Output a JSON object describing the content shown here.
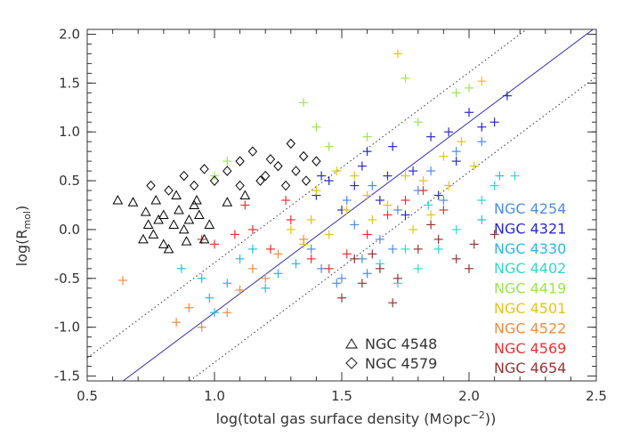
{
  "chart_data": {
    "type": "scatter",
    "xlabel_main": "log(total gas surface density (M",
    "xlabel_sym": "⊙",
    "xlabel_units": "pc",
    "xlabel_exp": "−2",
    "xlabel_close": "))",
    "ylabel_main": "log(R",
    "ylabel_sub": "mol",
    "ylabel_close": ")",
    "xlim": [
      0.5,
      2.5
    ],
    "ylim": [
      -1.55,
      2.05
    ],
    "xticks": [
      "0.5",
      "1.0",
      "1.5",
      "2.0",
      "2.5"
    ],
    "yticks": [
      "-1.5",
      "-1.0",
      "-0.5",
      "0.0",
      "0.5",
      "1.0",
      "1.5",
      "2.0"
    ],
    "fit_line": {
      "slope": 1.95,
      "intercept": -2.8,
      "color": "#3333aa"
    },
    "bounds": [
      {
        "slope": 1.95,
        "intercept": -2.29
      },
      {
        "slope": 1.95,
        "intercept": -3.31
      }
    ],
    "series": [
      {
        "name": "NGC 4254",
        "color": "#4d8ce6",
        "marker": "plus",
        "points": [
          [
            1.42,
            -0.4
          ],
          [
            1.5,
            -0.5
          ],
          [
            1.58,
            -0.3
          ],
          [
            1.65,
            -0.1
          ],
          [
            1.72,
            0.2
          ],
          [
            1.8,
            0.4
          ],
          [
            1.55,
            0.05
          ],
          [
            1.48,
            -0.55
          ],
          [
            1.62,
            0.45
          ],
          [
            1.7,
            -0.2
          ],
          [
            1.85,
            0.6
          ],
          [
            1.9,
            0.3
          ],
          [
            1.95,
            0.8
          ],
          [
            1.52,
            0.3
          ],
          [
            1.38,
            -0.2
          ],
          [
            1.6,
            -0.45
          ],
          [
            2.05,
            0.9
          ]
        ]
      },
      {
        "name": "NGC 4321",
        "color": "#2929cc",
        "marker": "plus",
        "points": [
          [
            1.45,
            0.5
          ],
          [
            1.55,
            0.45
          ],
          [
            1.6,
            0.8
          ],
          [
            1.7,
            0.85
          ],
          [
            1.78,
            0.6
          ],
          [
            1.85,
            0.95
          ],
          [
            1.92,
            1.0
          ],
          [
            2.0,
            1.2
          ],
          [
            2.1,
            1.1
          ],
          [
            2.15,
            1.37
          ],
          [
            1.65,
            0.3
          ],
          [
            1.5,
            0.2
          ],
          [
            1.4,
            0.35
          ],
          [
            1.75,
            0.15
          ],
          [
            1.88,
            0.35
          ],
          [
            1.95,
            0.7
          ],
          [
            2.05,
            1.05
          ],
          [
            1.58,
            0.65
          ],
          [
            1.42,
            0.55
          ],
          [
            1.68,
            0.55
          ]
        ]
      },
      {
        "name": "NGC 4330",
        "color": "#29b8e6",
        "marker": "plus",
        "points": [
          [
            0.87,
            -0.4
          ],
          [
            0.95,
            -0.5
          ],
          [
            1.0,
            -0.85
          ],
          [
            1.05,
            -0.55
          ],
          [
            1.1,
            -0.3
          ],
          [
            0.98,
            -0.7
          ],
          [
            1.15,
            -0.2
          ],
          [
            2.05,
            0.1
          ],
          [
            2.12,
            0.55
          ],
          [
            1.25,
            -0.45
          ],
          [
            1.32,
            -0.35
          ],
          [
            1.2,
            -0.6
          ]
        ]
      },
      {
        "name": "NGC 4402",
        "color": "#33d6cc",
        "marker": "plus",
        "points": [
          [
            1.65,
            -0.35
          ],
          [
            1.72,
            -0.55
          ],
          [
            1.8,
            -0.4
          ],
          [
            1.88,
            -0.2
          ],
          [
            1.95,
            0.0
          ],
          [
            2.05,
            0.3
          ],
          [
            2.1,
            0.45
          ],
          [
            1.75,
            -0.2
          ],
          [
            1.84,
            0.25
          ],
          [
            2.18,
            0.55
          ]
        ]
      },
      {
        "name": "NGC 4419",
        "color": "#99e64d",
        "marker": "plus",
        "points": [
          [
            1.0,
            0.55
          ],
          [
            1.05,
            0.7
          ],
          [
            1.35,
            1.3
          ],
          [
            1.4,
            1.05
          ],
          [
            1.45,
            0.85
          ],
          [
            1.95,
            1.4
          ],
          [
            2.0,
            1.45
          ],
          [
            1.75,
            1.55
          ],
          [
            1.8,
            1.1
          ],
          [
            1.6,
            0.95
          ]
        ]
      },
      {
        "name": "NGC 4501",
        "color": "#e6c21a",
        "marker": "plus",
        "points": [
          [
            1.3,
            0.0
          ],
          [
            1.38,
            0.1
          ],
          [
            1.45,
            -0.05
          ],
          [
            1.52,
            0.2
          ],
          [
            1.6,
            0.35
          ],
          [
            1.68,
            0.25
          ],
          [
            1.75,
            0.55
          ],
          [
            1.82,
            0.5
          ],
          [
            1.9,
            0.75
          ],
          [
            1.97,
            0.9
          ],
          [
            2.05,
            1.52
          ],
          [
            1.72,
            1.8
          ],
          [
            1.55,
            0.55
          ],
          [
            1.4,
            0.4
          ],
          [
            1.62,
            0.1
          ],
          [
            1.85,
            0.15
          ],
          [
            1.92,
            0.45
          ],
          [
            2.02,
            0.65
          ],
          [
            1.35,
            -0.15
          ],
          [
            1.48,
            0.6
          ],
          [
            1.78,
            0.0
          ]
        ]
      },
      {
        "name": "NGC 4522",
        "color": "#f08c40",
        "marker": "plus",
        "points": [
          [
            0.64,
            -0.52
          ],
          [
            0.9,
            -0.8
          ],
          [
            0.95,
            -1.0
          ],
          [
            1.05,
            -0.85
          ],
          [
            1.1,
            -0.62
          ],
          [
            1.15,
            -0.4
          ],
          [
            1.25,
            -0.25
          ],
          [
            1.35,
            -0.1
          ],
          [
            0.85,
            -0.95
          ],
          [
            1.2,
            -0.5
          ]
        ]
      },
      {
        "name": "NGC 4569",
        "color": "#e63333",
        "marker": "plus",
        "points": [
          [
            0.95,
            -0.1
          ],
          [
            1.0,
            -0.15
          ],
          [
            1.08,
            -0.05
          ],
          [
            1.15,
            0.0
          ],
          [
            1.22,
            -0.2
          ],
          [
            1.3,
            0.1
          ],
          [
            1.38,
            -0.3
          ],
          [
            1.45,
            -0.4
          ],
          [
            1.52,
            -0.25
          ],
          [
            1.6,
            -0.05
          ],
          [
            1.68,
            0.15
          ],
          [
            1.75,
            0.3
          ],
          [
            1.82,
            0.4
          ],
          [
            1.9,
            0.2
          ],
          [
            1.12,
            0.25
          ],
          [
            1.28,
            0.3
          ]
        ]
      },
      {
        "name": "NGC 4654",
        "color": "#993333",
        "marker": "plus",
        "points": [
          [
            1.5,
            -0.7
          ],
          [
            1.58,
            -0.55
          ],
          [
            1.65,
            -0.4
          ],
          [
            1.72,
            -0.5
          ],
          [
            1.8,
            -0.2
          ],
          [
            1.88,
            -0.1
          ],
          [
            1.95,
            -0.3
          ],
          [
            2.02,
            -0.15
          ],
          [
            2.1,
            -0.05
          ],
          [
            1.55,
            -0.3
          ],
          [
            1.7,
            -0.75
          ],
          [
            1.62,
            -0.25
          ],
          [
            1.85,
            0.05
          ],
          [
            2.0,
            -0.4
          ]
        ]
      },
      {
        "name": "NGC 4548",
        "color": "#000000",
        "marker": "triangle",
        "points": [
          [
            0.62,
            0.3
          ],
          [
            0.68,
            0.28
          ],
          [
            0.72,
            -0.1
          ],
          [
            0.74,
            0.05
          ],
          [
            0.76,
            -0.05
          ],
          [
            0.78,
            0.1
          ],
          [
            0.8,
            0.15
          ],
          [
            0.82,
            -0.2
          ],
          [
            0.84,
            0.05
          ],
          [
            0.86,
            0.2
          ],
          [
            0.88,
            0.0
          ],
          [
            0.9,
            0.1
          ],
          [
            0.92,
            0.25
          ],
          [
            0.94,
            0.15
          ],
          [
            0.96,
            -0.1
          ],
          [
            0.98,
            0.05
          ],
          [
            0.85,
            0.35
          ],
          [
            0.8,
            -0.15
          ],
          [
            0.73,
            0.18
          ],
          [
            0.77,
            0.3
          ],
          [
            1.05,
            0.28
          ],
          [
            1.12,
            0.35
          ],
          [
            0.89,
            -0.12
          ],
          [
            0.93,
            0.3
          ]
        ]
      },
      {
        "name": "NGC 4579",
        "color": "#000000",
        "marker": "diamond",
        "points": [
          [
            0.75,
            0.45
          ],
          [
            0.82,
            0.4
          ],
          [
            0.88,
            0.55
          ],
          [
            0.92,
            0.45
          ],
          [
            0.96,
            0.62
          ],
          [
            1.0,
            0.5
          ],
          [
            1.05,
            0.6
          ],
          [
            1.1,
            0.7
          ],
          [
            1.15,
            0.8
          ],
          [
            1.2,
            0.55
          ],
          [
            1.25,
            0.65
          ],
          [
            1.3,
            0.88
          ],
          [
            1.35,
            0.75
          ],
          [
            1.4,
            0.7
          ],
          [
            1.18,
            0.5
          ],
          [
            1.28,
            0.45
          ],
          [
            1.1,
            0.45
          ],
          [
            1.32,
            0.6
          ],
          [
            1.22,
            0.72
          ],
          [
            1.36,
            0.5
          ]
        ]
      }
    ],
    "legend_right": [
      "NGC 4254",
      "NGC 4321",
      "NGC 4330",
      "NGC 4402",
      "NGC 4419",
      "NGC 4501",
      "NGC 4522",
      "NGC 4569",
      "NGC 4654"
    ],
    "legend_left": [
      "NGC 4548",
      "NGC 4579"
    ]
  }
}
